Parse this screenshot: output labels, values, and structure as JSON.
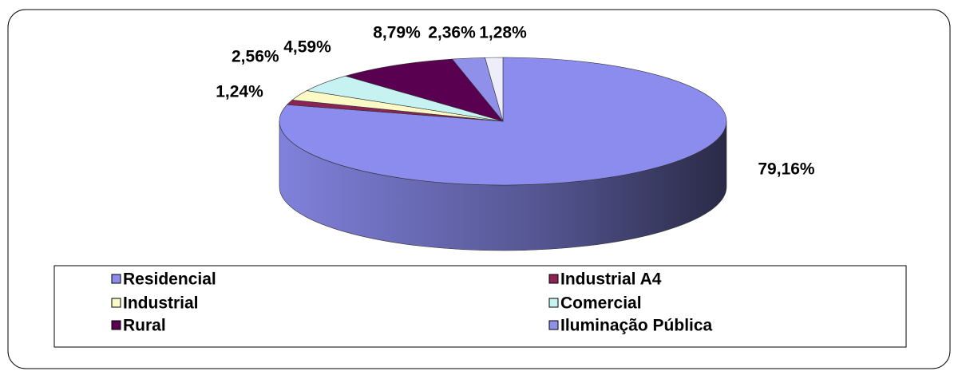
{
  "chart_data": {
    "type": "pie3d",
    "categories": [
      "Residencial",
      "Industrial A4",
      "Industrial",
      "Comercial",
      "Rural",
      "Iluminação Pública",
      null
    ],
    "values": [
      79.16,
      1.24,
      2.56,
      4.59,
      8.79,
      2.36,
      1.28
    ],
    "value_labels": [
      "79,16%",
      "1,24%",
      "2,56%",
      "4,59%",
      "8,79%",
      "2,36%",
      "1,28%"
    ],
    "colors": [
      "#8b8cee",
      "#8b2455",
      "#fbf9c6",
      "#c6f2f2",
      "#5a0050",
      "#8f90ea",
      "#eeeefa"
    ],
    "legend": "bottom"
  }
}
